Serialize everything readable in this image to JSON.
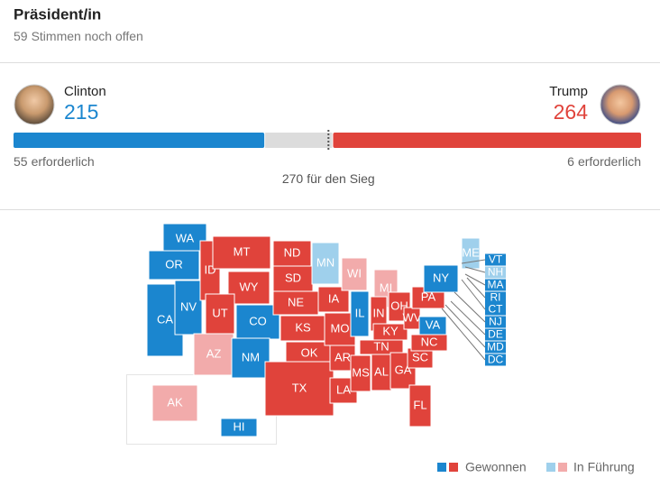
{
  "header": {
    "title": "Präsident/in",
    "open": {
      "count": 59,
      "label": "Stimmen noch offen"
    }
  },
  "candidates": [
    {
      "name": "Clinton",
      "votes": 215,
      "needed": 55,
      "needed_label": "erforderlich",
      "color": "#1b86cf"
    },
    {
      "name": "Trump",
      "votes": 264,
      "needed": 6,
      "needed_label": "erforderlich",
      "color": "#e0433b"
    }
  ],
  "threshold": {
    "votes": 270,
    "label": "für den Sieg"
  },
  "map": {
    "status_colors": {
      "won_d": "#1b86cf",
      "won_r": "#e0433b",
      "lead_d": "#9fd0ec",
      "lead_r": "#f2abab"
    },
    "states": [
      {
        "label": "WA",
        "status": "won_d"
      },
      {
        "label": "OR",
        "status": "won_d"
      },
      {
        "label": "CA",
        "status": "won_d"
      },
      {
        "label": "NV",
        "status": "won_d"
      },
      {
        "label": "ID",
        "status": "won_r"
      },
      {
        "label": "MT",
        "status": "won_r"
      },
      {
        "label": "WY",
        "status": "won_r"
      },
      {
        "label": "UT",
        "status": "won_r"
      },
      {
        "label": "AZ",
        "status": "lead_r"
      },
      {
        "label": "CO",
        "status": "won_d"
      },
      {
        "label": "NM",
        "status": "won_d"
      },
      {
        "label": "ND",
        "status": "won_r"
      },
      {
        "label": "SD",
        "status": "won_r"
      },
      {
        "label": "NE",
        "status": "won_r"
      },
      {
        "label": "KS",
        "status": "won_r"
      },
      {
        "label": "OK",
        "status": "won_r"
      },
      {
        "label": "TX",
        "status": "won_r"
      },
      {
        "label": "MN",
        "status": "lead_d"
      },
      {
        "label": "IA",
        "status": "won_r"
      },
      {
        "label": "MO",
        "status": "won_r"
      },
      {
        "label": "AR",
        "status": "won_r"
      },
      {
        "label": "LA",
        "status": "won_r"
      },
      {
        "label": "WI",
        "status": "lead_r"
      },
      {
        "label": "IL",
        "status": "won_d"
      },
      {
        "label": "MI",
        "status": "lead_r"
      },
      {
        "label": "IN",
        "status": "won_r"
      },
      {
        "label": "OH",
        "status": "won_r"
      },
      {
        "label": "KY",
        "status": "won_r"
      },
      {
        "label": "TN",
        "status": "won_r"
      },
      {
        "label": "MS",
        "status": "won_r"
      },
      {
        "label": "AL",
        "status": "won_r"
      },
      {
        "label": "GA",
        "status": "won_r"
      },
      {
        "label": "FL",
        "status": "won_r"
      },
      {
        "label": "SC",
        "status": "won_r"
      },
      {
        "label": "NC",
        "status": "won_r"
      },
      {
        "label": "WV",
        "status": "won_r"
      },
      {
        "label": "VA",
        "status": "won_d"
      },
      {
        "label": "PA",
        "status": "won_r"
      },
      {
        "label": "NY",
        "status": "won_d"
      },
      {
        "label": "ME",
        "status": "lead_d"
      },
      {
        "label": "AK",
        "status": "lead_r"
      },
      {
        "label": "HI",
        "status": "won_d"
      },
      {
        "label": "VT",
        "status": "won_d"
      },
      {
        "label": "NH",
        "status": "lead_d"
      },
      {
        "label": "MA",
        "status": "won_d"
      },
      {
        "label": "RI",
        "status": "won_d"
      },
      {
        "label": "CT",
        "status": "won_d"
      },
      {
        "label": "NJ",
        "status": "won_d"
      },
      {
        "label": "DE",
        "status": "won_d"
      },
      {
        "label": "MD",
        "status": "won_d"
      },
      {
        "label": "DC",
        "status": "won_d"
      }
    ]
  },
  "legend": {
    "won": "Gewonnen",
    "lead": "In Führung"
  }
}
